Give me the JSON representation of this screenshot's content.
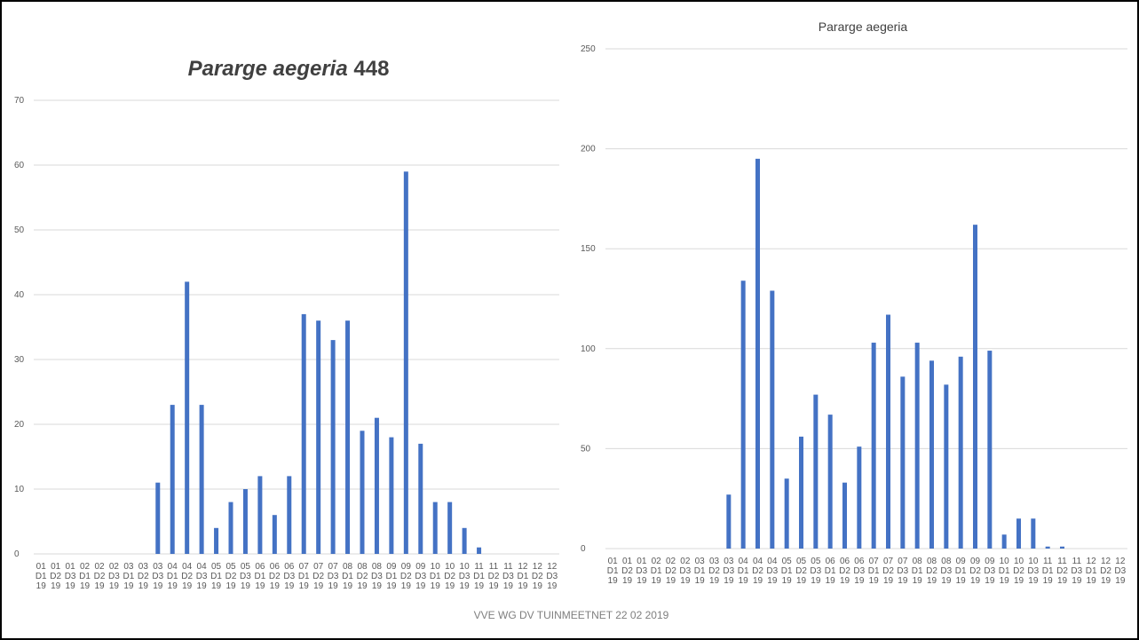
{
  "footer": "VVE WG DV TUINMEETNET 22 02 2019",
  "colors": {
    "bar": "#4472c4",
    "grid": "#d9d9d9",
    "text": "#595959"
  },
  "chart_data": [
    {
      "type": "bar",
      "title_italic": "Pararge aegeria",
      "title_suffix": " 448",
      "ylim": [
        0,
        70
      ],
      "yticks": [
        0,
        10,
        20,
        30,
        40,
        50,
        60,
        70
      ],
      "grid": true,
      "categories": [
        "01 D1 19",
        "01 D2 19",
        "01 D3 19",
        "02 D1 19",
        "02 D2 19",
        "02 D3 19",
        "03 D1 19",
        "03 D2 19",
        "03 D3 19",
        "04 D1 19",
        "04 D2 19",
        "04 D3 19",
        "05 D1 19",
        "05 D2 19",
        "05 D3 19",
        "06 D1 19",
        "06 D2 19",
        "06 D3 19",
        "07 D1 19",
        "07 D2 19",
        "07 D3 19",
        "08 D1 19",
        "08 D2 19",
        "08 D3 19",
        "09 D1 19",
        "09 D2 19",
        "09 D3 19",
        "10 D1 19",
        "10 D2 19",
        "10 D3 19",
        "11 D1 19",
        "11 D2 19",
        "11 D3 19",
        "12 D1 19",
        "12 D2 19",
        "12 D3 19"
      ],
      "values": [
        0,
        0,
        0,
        0,
        0,
        0,
        0,
        0,
        11,
        23,
        42,
        23,
        4,
        8,
        10,
        12,
        6,
        12,
        37,
        36,
        33,
        36,
        19,
        21,
        18,
        59,
        17,
        8,
        8,
        4,
        1,
        0,
        0,
        0,
        0,
        0
      ]
    },
    {
      "type": "bar",
      "title": "Pararge aegeria",
      "ylim": [
        0,
        250
      ],
      "yticks": [
        0,
        50,
        100,
        150,
        200,
        250
      ],
      "grid": true,
      "categories": [
        "01 D1 19",
        "01 D2 19",
        "01 D3 19",
        "02 D1 19",
        "02 D2 19",
        "02 D3 19",
        "03 D1 19",
        "03 D2 19",
        "03 D3 19",
        "04 D1 19",
        "04 D2 19",
        "04 D3 19",
        "05 D1 19",
        "05 D2 19",
        "05 D3 19",
        "06 D1 19",
        "06 D2 19",
        "06 D3 19",
        "07 D1 19",
        "07 D2 19",
        "07 D3 19",
        "08 D1 19",
        "08 D2 19",
        "08 D3 19",
        "09 D1 19",
        "09 D2 19",
        "09 D3 19",
        "10 D1 19",
        "10 D2 19",
        "10 D3 19",
        "11 D1 19",
        "11 D2 19",
        "11 D3 19",
        "12 D1 19",
        "12 D2 19",
        "12 D3 19"
      ],
      "values": [
        0,
        0,
        0,
        0,
        0,
        0,
        0,
        0,
        27,
        134,
        195,
        129,
        35,
        56,
        77,
        67,
        33,
        51,
        103,
        117,
        86,
        103,
        94,
        82,
        96,
        162,
        99,
        7,
        15,
        15,
        1,
        1,
        0,
        0,
        0,
        0
      ]
    }
  ]
}
